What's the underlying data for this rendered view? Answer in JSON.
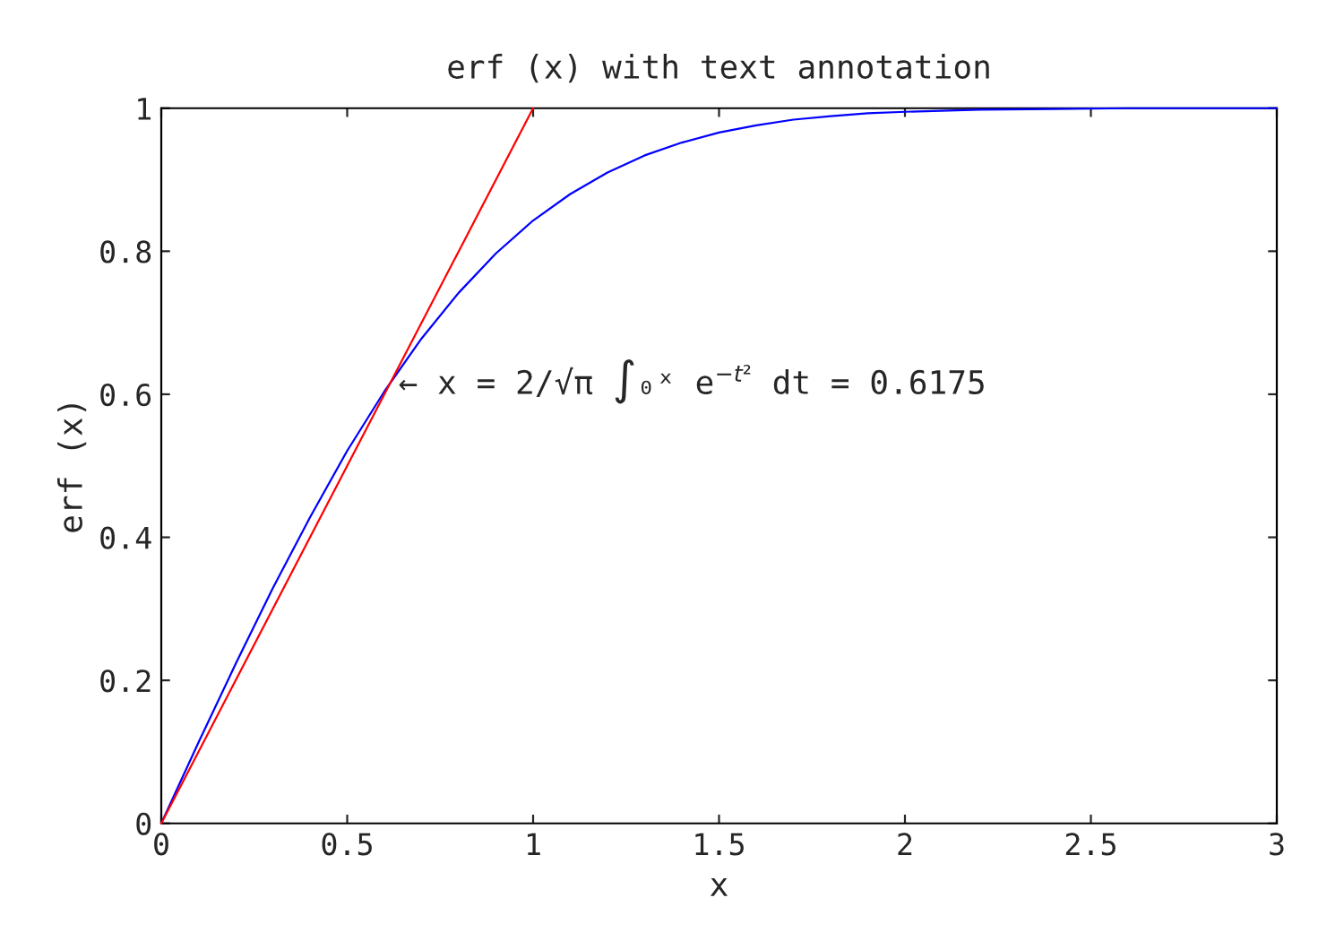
{
  "chart_data": {
    "type": "line",
    "title": "erf (x) with text annotation",
    "xlabel": "x",
    "ylabel": "erf (x)",
    "series": [
      {
        "color": "#0000ff",
        "x": [
          0,
          0.1,
          0.2,
          0.3,
          0.4,
          0.5,
          0.6,
          0.7,
          0.8,
          0.9,
          1.0,
          1.1,
          1.2,
          1.3,
          1.4,
          1.5,
          1.6,
          1.7,
          1.8,
          1.9,
          2.0,
          2.2,
          2.4,
          2.6,
          2.8,
          3.0
        ],
        "values": [
          0,
          0.113,
          0.223,
          0.329,
          0.428,
          0.521,
          0.604,
          0.678,
          0.742,
          0.797,
          0.843,
          0.88,
          0.91,
          0.934,
          0.952,
          0.966,
          0.976,
          0.984,
          0.989,
          0.993,
          0.995,
          0.998,
          0.999,
          1.0,
          1.0,
          1.0
        ]
      },
      {
        "color": "#ff0000",
        "x": [
          0,
          1
        ],
        "values": [
          0,
          1
        ]
      }
    ],
    "annotations": [
      {
        "text": "← x = 2/√π ∫₀ˣ e$^{−t²}$ dt = 0.6175",
        "x": 0.6175,
        "y": 0.6175
      }
    ],
    "xlim": [
      0,
      3
    ],
    "xticks": [
      0,
      0.5,
      1,
      1.5,
      2,
      2.5,
      3
    ],
    "ylim": [
      0,
      1
    ],
    "yticks": [
      0,
      0.2,
      0.4,
      0.6,
      0.8,
      1
    ],
    "grid": false,
    "legend": false
  }
}
